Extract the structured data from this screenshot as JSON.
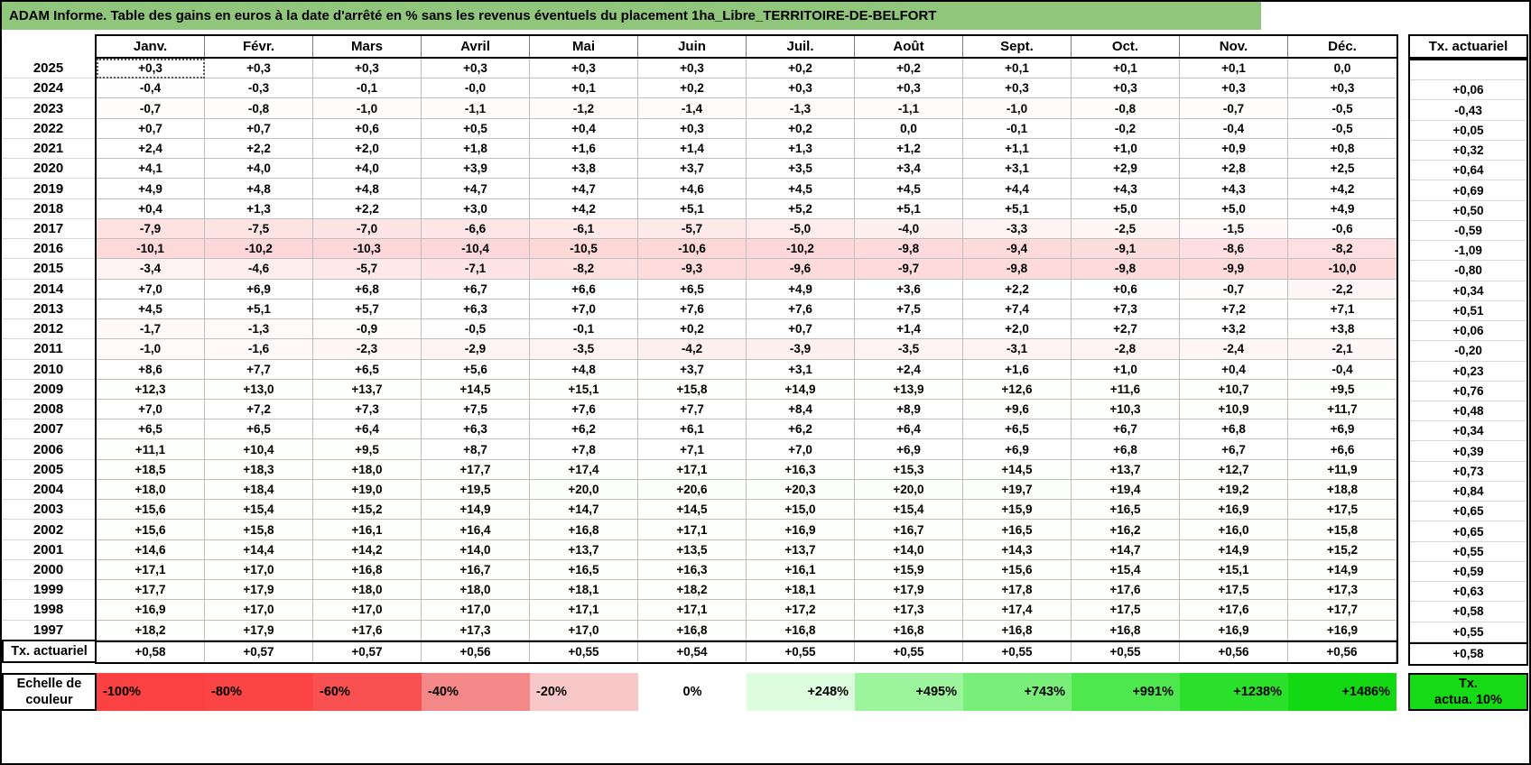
{
  "title": "ADAM Informe. Table des gains en euros à la date d'arrêté en % sans les revenus éventuels du placement 1ha_Libre_TERRITOIRE-DE-BELFORT",
  "months": [
    "Janv.",
    "Févr.",
    "Mars",
    "Avril",
    "Mai",
    "Juin",
    "Juil.",
    "Août",
    "Sept.",
    "Oct.",
    "Nov.",
    "Déc."
  ],
  "tx_header": "Tx. actuariel",
  "footer_label": "Tx. actuariel",
  "colors": {
    "title_bg": "#90C67C",
    "negative_full": "#F94242",
    "positive_full": "#12D912",
    "gridline": "#BFBFBF",
    "border": "#000000"
  },
  "chart_data": {
    "type": "heatmap",
    "note": "values are monthly gains in % with comma decimals; tx = taux actuariel per year",
    "columns": [
      "Janv.",
      "Févr.",
      "Mars",
      "Avril",
      "Mai",
      "Juin",
      "Juil.",
      "Août",
      "Sept.",
      "Oct.",
      "Nov.",
      "Déc."
    ]
  },
  "rows": [
    {
      "year": "2025",
      "values": [
        "+0,3",
        "+0,3",
        "+0,3",
        "+0,3",
        "+0,3",
        "+0,3",
        "+0,2",
        "+0,2",
        "+0,1",
        "+0,1",
        "+0,1",
        "0,0"
      ],
      "tx": ""
    },
    {
      "year": "2024",
      "values": [
        "-0,4",
        "-0,3",
        "-0,1",
        "-0,0",
        "+0,1",
        "+0,2",
        "+0,3",
        "+0,3",
        "+0,3",
        "+0,3",
        "+0,3",
        "+0,3"
      ],
      "tx": "+0,06"
    },
    {
      "year": "2023",
      "values": [
        "-0,7",
        "-0,8",
        "-1,0",
        "-1,1",
        "-1,2",
        "-1,4",
        "-1,3",
        "-1,1",
        "-1,0",
        "-0,8",
        "-0,7",
        "-0,5"
      ],
      "tx": "-0,43"
    },
    {
      "year": "2022",
      "values": [
        "+0,7",
        "+0,7",
        "+0,6",
        "+0,5",
        "+0,4",
        "+0,3",
        "+0,2",
        "0,0",
        "-0,1",
        "-0,2",
        "-0,4",
        "-0,5"
      ],
      "tx": "+0,05"
    },
    {
      "year": "2021",
      "values": [
        "+2,4",
        "+2,2",
        "+2,0",
        "+1,8",
        "+1,6",
        "+1,4",
        "+1,3",
        "+1,2",
        "+1,1",
        "+1,0",
        "+0,9",
        "+0,8"
      ],
      "tx": "+0,32"
    },
    {
      "year": "2020",
      "values": [
        "+4,1",
        "+4,0",
        "+4,0",
        "+3,9",
        "+3,8",
        "+3,7",
        "+3,5",
        "+3,4",
        "+3,1",
        "+2,9",
        "+2,8",
        "+2,5"
      ],
      "tx": "+0,64"
    },
    {
      "year": "2019",
      "values": [
        "+4,9",
        "+4,8",
        "+4,8",
        "+4,7",
        "+4,7",
        "+4,6",
        "+4,5",
        "+4,5",
        "+4,4",
        "+4,3",
        "+4,3",
        "+4,2"
      ],
      "tx": "+0,69"
    },
    {
      "year": "2018",
      "values": [
        "+0,4",
        "+1,3",
        "+2,2",
        "+3,0",
        "+4,2",
        "+5,1",
        "+5,2",
        "+5,1",
        "+5,1",
        "+5,0",
        "+5,0",
        "+4,9"
      ],
      "tx": "+0,50"
    },
    {
      "year": "2017",
      "values": [
        "-7,9",
        "-7,5",
        "-7,0",
        "-6,6",
        "-6,1",
        "-5,7",
        "-5,0",
        "-4,0",
        "-3,3",
        "-2,5",
        "-1,5",
        "-0,6"
      ],
      "tx": "-0,59"
    },
    {
      "year": "2016",
      "values": [
        "-10,1",
        "-10,2",
        "-10,3",
        "-10,4",
        "-10,5",
        "-10,6",
        "-10,2",
        "-9,8",
        "-9,4",
        "-9,1",
        "-8,6",
        "-8,2"
      ],
      "tx": "-1,09"
    },
    {
      "year": "2015",
      "values": [
        "-3,4",
        "-4,6",
        "-5,7",
        "-7,1",
        "-8,2",
        "-9,3",
        "-9,6",
        "-9,7",
        "-9,8",
        "-9,8",
        "-9,9",
        "-10,0"
      ],
      "tx": "-0,80"
    },
    {
      "year": "2014",
      "values": [
        "+7,0",
        "+6,9",
        "+6,8",
        "+6,7",
        "+6,6",
        "+6,5",
        "+4,9",
        "+3,6",
        "+2,2",
        "+0,6",
        "-0,7",
        "-2,2"
      ],
      "tx": "+0,34"
    },
    {
      "year": "2013",
      "values": [
        "+4,5",
        "+5,1",
        "+5,7",
        "+6,3",
        "+7,0",
        "+7,6",
        "+7,6",
        "+7,5",
        "+7,4",
        "+7,3",
        "+7,2",
        "+7,1"
      ],
      "tx": "+0,51"
    },
    {
      "year": "2012",
      "values": [
        "-1,7",
        "-1,3",
        "-0,9",
        "-0,5",
        "-0,1",
        "+0,2",
        "+0,7",
        "+1,4",
        "+2,0",
        "+2,7",
        "+3,2",
        "+3,8"
      ],
      "tx": "+0,06"
    },
    {
      "year": "2011",
      "values": [
        "-1,0",
        "-1,6",
        "-2,3",
        "-2,9",
        "-3,5",
        "-4,2",
        "-3,9",
        "-3,5",
        "-3,1",
        "-2,8",
        "-2,4",
        "-2,1"
      ],
      "tx": "-0,20"
    },
    {
      "year": "2010",
      "values": [
        "+8,6",
        "+7,7",
        "+6,5",
        "+5,6",
        "+4,8",
        "+3,7",
        "+3,1",
        "+2,4",
        "+1,6",
        "+1,0",
        "+0,4",
        "-0,4"
      ],
      "tx": "+0,23"
    },
    {
      "year": "2009",
      "values": [
        "+12,3",
        "+13,0",
        "+13,7",
        "+14,5",
        "+15,1",
        "+15,8",
        "+14,9",
        "+13,9",
        "+12,6",
        "+11,6",
        "+10,7",
        "+9,5"
      ],
      "tx": "+0,76"
    },
    {
      "year": "2008",
      "values": [
        "+7,0",
        "+7,2",
        "+7,3",
        "+7,5",
        "+7,6",
        "+7,7",
        "+8,4",
        "+8,9",
        "+9,6",
        "+10,3",
        "+10,9",
        "+11,7"
      ],
      "tx": "+0,48"
    },
    {
      "year": "2007",
      "values": [
        "+6,5",
        "+6,5",
        "+6,4",
        "+6,3",
        "+6,2",
        "+6,1",
        "+6,2",
        "+6,4",
        "+6,5",
        "+6,7",
        "+6,8",
        "+6,9"
      ],
      "tx": "+0,34"
    },
    {
      "year": "2006",
      "values": [
        "+11,1",
        "+10,4",
        "+9,5",
        "+8,7",
        "+7,8",
        "+7,1",
        "+7,0",
        "+6,9",
        "+6,9",
        "+6,8",
        "+6,7",
        "+6,6"
      ],
      "tx": "+0,39"
    },
    {
      "year": "2005",
      "values": [
        "+18,5",
        "+18,3",
        "+18,0",
        "+17,7",
        "+17,4",
        "+17,1",
        "+16,3",
        "+15,3",
        "+14,5",
        "+13,7",
        "+12,7",
        "+11,9"
      ],
      "tx": "+0,73"
    },
    {
      "year": "2004",
      "values": [
        "+18,0",
        "+18,4",
        "+19,0",
        "+19,5",
        "+20,0",
        "+20,6",
        "+20,3",
        "+20,0",
        "+19,7",
        "+19,4",
        "+19,2",
        "+18,8"
      ],
      "tx": "+0,84"
    },
    {
      "year": "2003",
      "values": [
        "+15,6",
        "+15,4",
        "+15,2",
        "+14,9",
        "+14,7",
        "+14,5",
        "+15,0",
        "+15,4",
        "+15,9",
        "+16,5",
        "+16,9",
        "+17,5"
      ],
      "tx": "+0,65"
    },
    {
      "year": "2002",
      "values": [
        "+15,6",
        "+15,8",
        "+16,1",
        "+16,4",
        "+16,8",
        "+17,1",
        "+16,9",
        "+16,7",
        "+16,5",
        "+16,2",
        "+16,0",
        "+15,8"
      ],
      "tx": "+0,65"
    },
    {
      "year": "2001",
      "values": [
        "+14,6",
        "+14,4",
        "+14,2",
        "+14,0",
        "+13,7",
        "+13,5",
        "+13,7",
        "+14,0",
        "+14,3",
        "+14,7",
        "+14,9",
        "+15,2"
      ],
      "tx": "+0,55"
    },
    {
      "year": "2000",
      "values": [
        "+17,1",
        "+17,0",
        "+16,8",
        "+16,7",
        "+16,5",
        "+16,3",
        "+16,1",
        "+15,9",
        "+15,6",
        "+15,4",
        "+15,1",
        "+14,9"
      ],
      "tx": "+0,59"
    },
    {
      "year": "1999",
      "values": [
        "+17,7",
        "+17,9",
        "+18,0",
        "+18,0",
        "+18,1",
        "+18,2",
        "+18,1",
        "+17,9",
        "+17,8",
        "+17,6",
        "+17,5",
        "+17,3"
      ],
      "tx": "+0,63"
    },
    {
      "year": "1998",
      "values": [
        "+16,9",
        "+17,0",
        "+17,0",
        "+17,0",
        "+17,1",
        "+17,1",
        "+17,2",
        "+17,3",
        "+17,4",
        "+17,5",
        "+17,6",
        "+17,7"
      ],
      "tx": "+0,58"
    },
    {
      "year": "1997",
      "values": [
        "+18,2",
        "+17,9",
        "+17,6",
        "+17,3",
        "+17,0",
        "+16,8",
        "+16,8",
        "+16,8",
        "+16,8",
        "+16,8",
        "+16,9",
        "+16,9"
      ],
      "tx": "+0,55"
    }
  ],
  "footer_row": {
    "label": "Tx. actuariel",
    "values": [
      "+0,58",
      "+0,57",
      "+0,57",
      "+0,56",
      "+0,55",
      "+0,54",
      "+0,55",
      "+0,55",
      "+0,55",
      "+0,55",
      "+0,56",
      "+0,56"
    ],
    "tx": "+0,58"
  },
  "color_scale": {
    "label_line1": "Echelle de",
    "label_line2": "couleur",
    "cells": [
      {
        "label": "-100%",
        "color": "#FB4141",
        "align": "left"
      },
      {
        "label": "-80%",
        "color": "#FB4444",
        "align": "left"
      },
      {
        "label": "-60%",
        "color": "#F95151",
        "align": "left"
      },
      {
        "label": "-40%",
        "color": "#F48787",
        "align": "left"
      },
      {
        "label": "-20%",
        "color": "#F8C8C8",
        "align": "left"
      },
      {
        "label": "0%",
        "color": "#FFFFFF",
        "align": "center"
      },
      {
        "label": "+248%",
        "color": "#DEFCDE",
        "align": "right"
      },
      {
        "label": "+495%",
        "color": "#9CF49C",
        "align": "right"
      },
      {
        "label": "+743%",
        "color": "#79EF79",
        "align": "right"
      },
      {
        "label": "+991%",
        "color": "#4EE74E",
        "align": "right"
      },
      {
        "label": "+1238%",
        "color": "#2BE02B",
        "align": "right"
      },
      {
        "label": "+1486%",
        "color": "#12D912",
        "align": "right"
      }
    ],
    "tx_box_line1": "Tx.",
    "tx_box_line2": "actua. 10%",
    "tx_box_color": "#16DA16"
  }
}
